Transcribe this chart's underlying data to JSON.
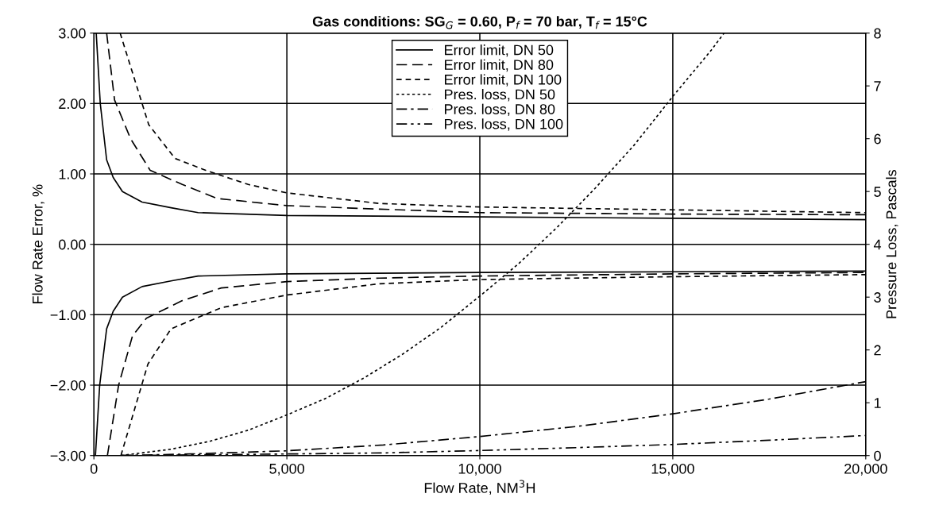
{
  "chart_data": {
    "type": "line",
    "title": "Gas conditions: SG$_{G}$ = 0.60, P$_{f}$ = 70 bar, T$_{f}$ = 15°C",
    "xlabel": "Flow Rate, NM$^{3}$H",
    "ylabel": "Flow Rate Error, %",
    "y2label": "Pressure Loss, Pascals",
    "xlim": [
      0,
      20000
    ],
    "xticks": [
      0,
      {
        "value": 5000,
        "label": "5,000"
      },
      {
        "value": 10000,
        "label": "10,000"
      },
      {
        "value": 15000,
        "label": "15,000"
      },
      {
        "value": 20000,
        "label": "20,000"
      }
    ],
    "ylim": [
      -3,
      3
    ],
    "yticks": [
      {
        "value": -3,
        "label": "−3.00"
      },
      {
        "value": -2,
        "label": "−2.00"
      },
      {
        "value": -1,
        "label": "−1.00"
      },
      {
        "value": 0,
        "label": "0.00"
      },
      {
        "value": 1,
        "label": "1.00"
      },
      {
        "value": 2,
        "label": "2.00"
      },
      {
        "value": 3,
        "label": "3.00"
      }
    ],
    "y2lim": [
      0,
      8
    ],
    "y2ticks": [
      0,
      1,
      2,
      3,
      4,
      5,
      6,
      7,
      8
    ],
    "grid": true,
    "legend": "top",
    "marker": "none",
    "series": [
      {
        "name": "Error limit, DN 50",
        "color": "#000000",
        "line_style": "solid",
        "x": [
          60,
          165,
          330,
          500,
          740,
          1250,
          2000,
          2700,
          5000,
          10000,
          15000,
          20000
        ],
        "values": [
          3.0,
          2.0,
          1.2,
          0.95,
          0.75,
          0.6,
          0.52,
          0.45,
          0.41,
          0.39,
          0.37,
          0.35
        ]
      },
      {
        "color": "#000000",
        "line_style": "solid",
        "x": [
          40,
          150,
          330,
          500,
          740,
          1250,
          2000,
          2700,
          5000,
          10000,
          15000,
          20000
        ],
        "values": [
          -3.0,
          -2.0,
          -1.2,
          -0.95,
          -0.75,
          -0.6,
          -0.52,
          -0.45,
          -0.42,
          -0.4,
          -0.39,
          -0.38
        ]
      },
      {
        "name": "Error limit, DN 80",
        "color": "#000000",
        "line_style": "dashed",
        "x": [
          330,
          535,
          950,
          1460,
          2290,
          3200,
          5000,
          7400,
          10000,
          15000,
          20000
        ],
        "values": [
          3.0,
          2.05,
          1.5,
          1.05,
          0.85,
          0.65,
          0.55,
          0.5,
          0.45,
          0.43,
          0.42
        ]
      },
      {
        "color": "#000000",
        "line_style": "dashed",
        "x": [
          350,
          640,
          1000,
          1360,
          2290,
          3300,
          5000,
          7400,
          10000,
          15000,
          20000
        ],
        "values": [
          -3.0,
          -2.0,
          -1.3,
          -1.05,
          -0.8,
          -0.62,
          -0.53,
          -0.48,
          -0.45,
          -0.42,
          -0.4
        ]
      },
      {
        "name": "Error limit, DN 100",
        "color": "#000000",
        "line_style": "densedash",
        "x": [
          680,
          1420,
          2100,
          2900,
          4000,
          5000,
          7400,
          10000,
          15000,
          20000
        ],
        "values": [
          3.0,
          1.7,
          1.22,
          1.05,
          0.85,
          0.73,
          0.58,
          0.53,
          0.49,
          0.45
        ]
      },
      {
        "color": "#000000",
        "line_style": "densedash",
        "x": [
          700,
          1400,
          2000,
          3300,
          5000,
          7400,
          10000,
          15000,
          20000
        ],
        "values": [
          -3.0,
          -1.7,
          -1.2,
          -0.9,
          -0.72,
          -0.56,
          -0.5,
          -0.46,
          -0.43
        ]
      },
      {
        "name": "Pres. loss, DN 50",
        "color": "#000000",
        "line_style": "dotted",
        "axis": "y2",
        "x": [
          700,
          2000,
          3000,
          4000,
          5000,
          6000,
          7000,
          8000,
          9000,
          10000,
          11000,
          12000,
          13000,
          14000,
          15000,
          16000,
          16330
        ],
        "values": [
          0.0,
          0.12,
          0.27,
          0.48,
          0.77,
          1.08,
          1.47,
          1.92,
          2.43,
          3.02,
          3.63,
          4.32,
          5.07,
          5.88,
          6.8,
          7.68,
          8.0
        ]
      },
      {
        "name": "Pres. loss, DN 80",
        "color": "#000000",
        "line_style": "dashdot",
        "axis": "y2",
        "x": [
          700,
          2500,
          5000,
          7500,
          10000,
          12500,
          15000,
          17500,
          20000
        ],
        "values": [
          0.0,
          0.03,
          0.09,
          0.2,
          0.36,
          0.55,
          0.79,
          1.07,
          1.4
        ]
      },
      {
        "name": "Pres. loss, DN 100",
        "color": "#000000",
        "line_style": "dashdotdot",
        "axis": "y2",
        "x": [
          700,
          5000,
          7500,
          10000,
          12500,
          15000,
          17500,
          20000
        ],
        "values": [
          0.0,
          0.03,
          0.05,
          0.095,
          0.15,
          0.21,
          0.29,
          0.38
        ]
      }
    ]
  }
}
